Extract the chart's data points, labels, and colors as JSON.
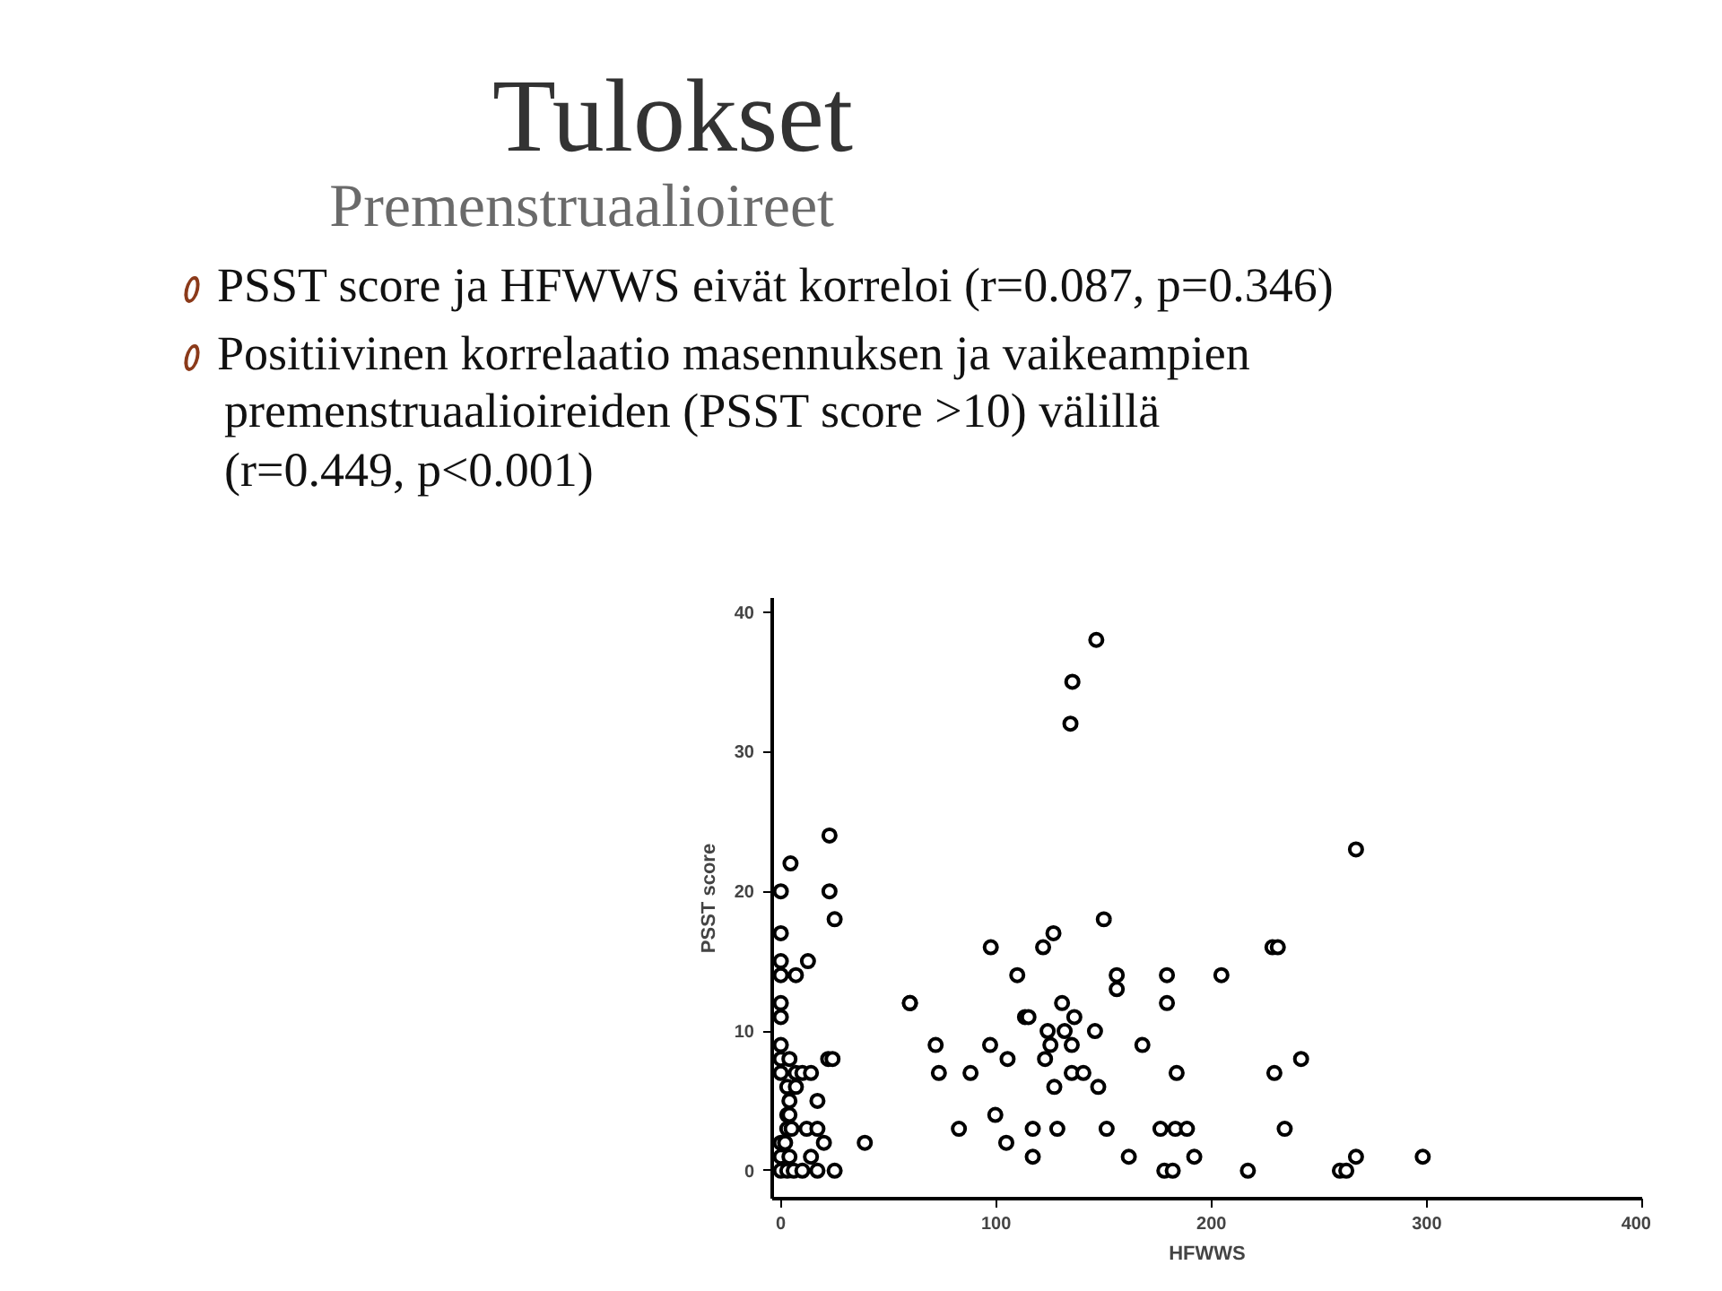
{
  "chart_data": {
    "type": "scatter",
    "title": "Tulokset",
    "subtitle": "Premenstruaalioireet",
    "annotations": [
      "PSST score ja HFWWS eivät korreloi (r=0.087, p=0.346)",
      "Positiivinen korrelaatio masennuksen ja vaikeampien premenstruaalioireiden (PSST score >10) välillä (r=0.449, p<0.001)"
    ],
    "xlabel": "HFWWS",
    "ylabel": "PSST score",
    "xlim": [
      -4,
      400
    ],
    "ylim": [
      -2,
      41
    ],
    "xticks": [
      0,
      100,
      200,
      300,
      400
    ],
    "yticks": [
      0,
      10,
      20,
      30,
      40
    ],
    "grid": false,
    "marker": "circle",
    "series": [
      {
        "color": "#000000",
        "x": [
          0,
          4.5,
          22.6,
          22.6,
          25,
          0,
          0,
          0,
          12.6,
          7,
          0,
          0,
          60,
          0,
          0,
          4,
          22,
          24,
          0,
          7,
          10,
          14,
          3,
          7,
          4,
          17,
          3,
          4,
          3,
          5,
          12,
          17,
          0,
          2,
          20,
          39,
          0,
          4,
          14,
          0,
          3,
          6,
          10,
          17,
          25,
          146.5,
          135.4,
          134.5,
          150,
          126.6,
          97.5,
          121.8,
          109.8,
          156,
          179.3,
          204.6,
          156,
          59.9,
          179.3,
          130.6,
          113.4,
          115,
          136.3,
          123.9,
          131.8,
          145.9,
          125.2,
          135.1,
          71.9,
          97.2,
          167.9,
          105.3,
          122.7,
          73.4,
          88.1,
          135.1,
          140.5,
          183.8,
          229.2,
          127,
          147.4,
          99.6,
          82.7,
          117,
          128.4,
          151.3,
          176.3,
          183.2,
          188.6,
          104.7,
          117,
          161.6,
          192,
          178.1,
          182,
          216.9,
          267.1,
          228.3,
          230.8,
          241.6,
          234,
          267.1,
          298.1,
          259.6,
          262.6
        ],
        "values": [
          20,
          22,
          24,
          20,
          18,
          17,
          15,
          14,
          15,
          14,
          12,
          11,
          12,
          9,
          8,
          8,
          8,
          8,
          7,
          7,
          7,
          7,
          6,
          6,
          5,
          5,
          4,
          4,
          3,
          3,
          3,
          3,
          2,
          2,
          2,
          2,
          1,
          1,
          1,
          0,
          0,
          0,
          0,
          0,
          0,
          38,
          35,
          32,
          18,
          17,
          16,
          16,
          14,
          14,
          14,
          14,
          13,
          12,
          12,
          12,
          11,
          11,
          11,
          10,
          10,
          10,
          9,
          9,
          9,
          9,
          9,
          8,
          8,
          7,
          7,
          7,
          7,
          7,
          7,
          6,
          6,
          4,
          3,
          3,
          3,
          3,
          3,
          3,
          3,
          2,
          1,
          1,
          1,
          0,
          0,
          0,
          23,
          16,
          16,
          8,
          3,
          1,
          1,
          0,
          0
        ]
      }
    ]
  }
}
